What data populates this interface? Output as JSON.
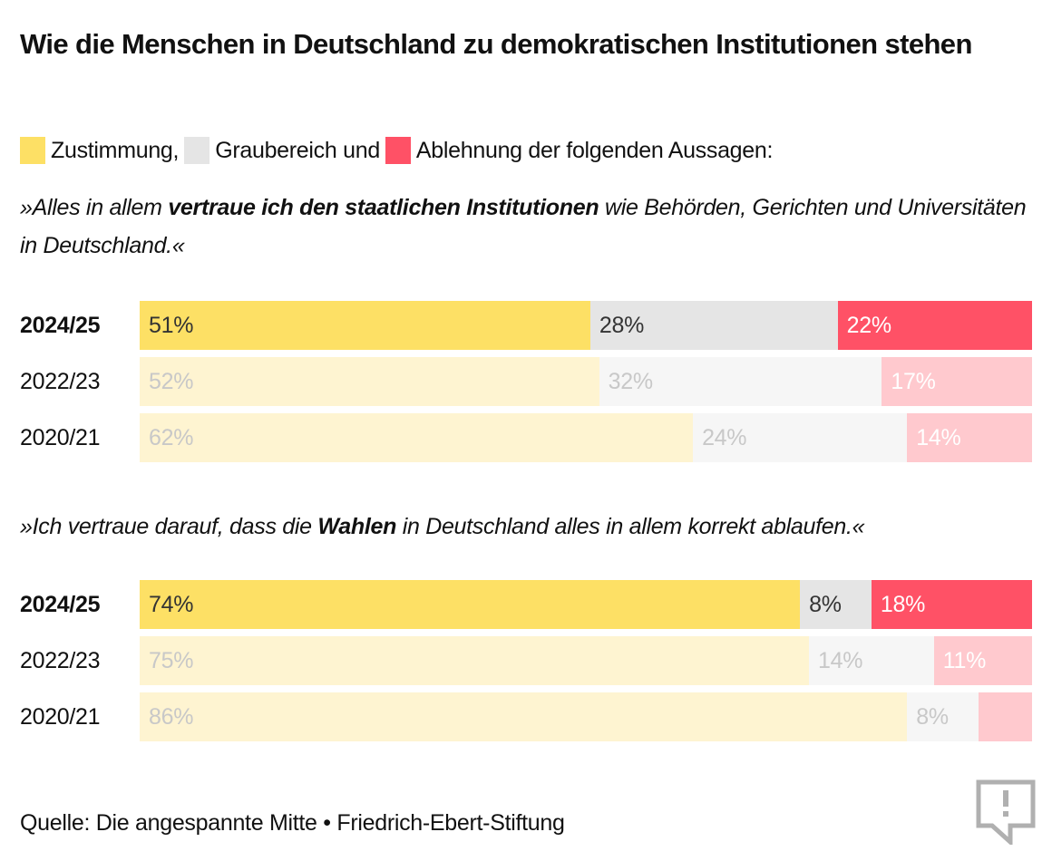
{
  "title": "Wie die Menschen in Deutschland zu demokratischen Institutionen stehen",
  "legend": {
    "items": [
      {
        "label": "Zustimmung,",
        "color": "#FDE065"
      },
      {
        "label": "Graubereich und",
        "color": "#E5E5E5"
      },
      {
        "label": "Ablehnung der folgenden Aussagen:",
        "color": "#FF5166"
      }
    ]
  },
  "colors": {
    "current": [
      "#FDE065",
      "#E5E5E5",
      "#FF5166"
    ],
    "past": [
      "#FEF4D1",
      "#F6F6F6",
      "#FFC9CE"
    ],
    "label_current": [
      "#333333",
      "#333333",
      "#FFFFFF"
    ],
    "label_past": [
      "#C8C8C8",
      "#C8C8C8",
      "#FFFFFF"
    ]
  },
  "source": "Quelle: Die angespannte Mitte • Friedrich-Ebert-Stiftung",
  "chart_data": [
    {
      "type": "bar",
      "orientation": "horizontal-stacked",
      "title": "»Alles in allem vertraue ich den staatlichen Institutionen wie Behörden, Gerichten und Universitäten in Deutschland.«",
      "statement_parts": [
        {
          "text": "»Alles in allem ",
          "bold": false
        },
        {
          "text": "vertraue ich den staatlichen Institutionen",
          "bold": true
        },
        {
          "text": " wie Behörden, Gerichten und Universitäten in Deutschland.«",
          "bold": false
        }
      ],
      "categories": [
        "2024/25",
        "2022/23",
        "2020/21"
      ],
      "series": [
        {
          "name": "Zustimmung",
          "values": [
            51,
            52,
            62
          ],
          "labels": [
            "51%",
            "52%",
            "62%"
          ]
        },
        {
          "name": "Graubereich",
          "values": [
            28,
            32,
            24
          ],
          "labels": [
            "28%",
            "32%",
            "24%"
          ]
        },
        {
          "name": "Ablehnung",
          "values": [
            22,
            17,
            14
          ],
          "labels": [
            "22%",
            "17%",
            "14%"
          ]
        }
      ],
      "unit": "%"
    },
    {
      "type": "bar",
      "orientation": "horizontal-stacked",
      "title": "»Ich vertraue darauf, dass die Wahlen in Deutschland alles in allem korrekt ablaufen.«",
      "statement_parts": [
        {
          "text": "»Ich vertraue darauf, dass die ",
          "bold": false
        },
        {
          "text": "Wahlen",
          "bold": true
        },
        {
          "text": " in Deutschland alles in allem korrekt ablaufen.«",
          "bold": false
        }
      ],
      "categories": [
        "2024/25",
        "2022/23",
        "2020/21"
      ],
      "series": [
        {
          "name": "Zustimmung",
          "values": [
            74,
            75,
            86
          ],
          "labels": [
            "74%",
            "75%",
            "86%"
          ]
        },
        {
          "name": "Graubereich",
          "values": [
            8,
            14,
            8
          ],
          "labels": [
            "8%",
            "14%",
            "8%"
          ]
        },
        {
          "name": "Ablehnung",
          "values": [
            18,
            11,
            6
          ],
          "labels": [
            "18%",
            "11%",
            ""
          ]
        }
      ],
      "unit": "%"
    }
  ]
}
